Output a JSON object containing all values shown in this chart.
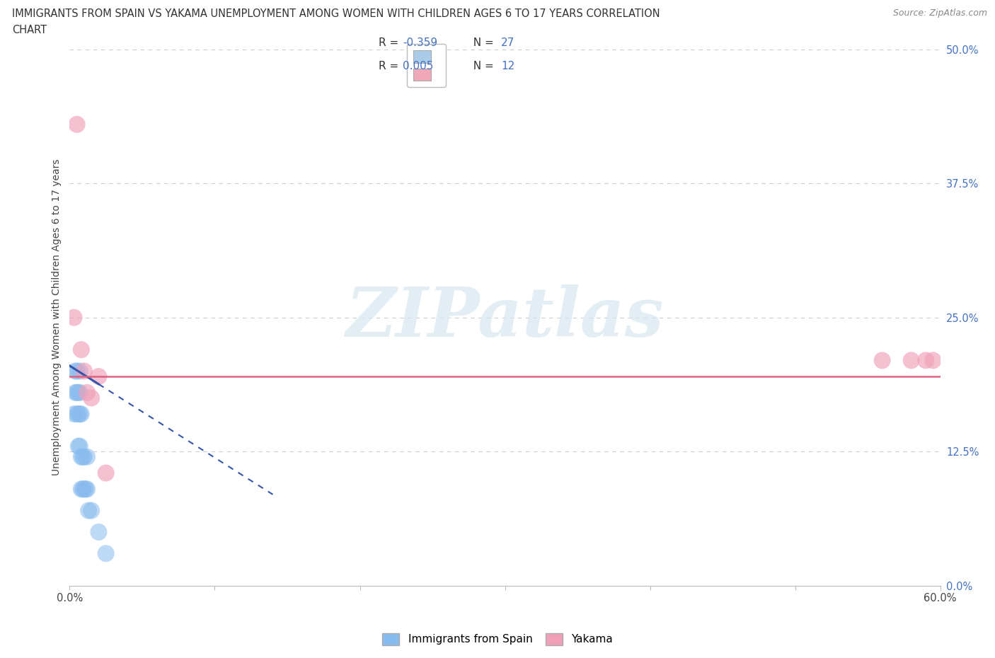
{
  "title_line1": "IMMIGRANTS FROM SPAIN VS YAKAMA UNEMPLOYMENT AMONG WOMEN WITH CHILDREN AGES 6 TO 17 YEARS CORRELATION",
  "title_line2": "CHART",
  "source": "Source: ZipAtlas.com",
  "ylabel": "Unemployment Among Women with Children Ages 6 to 17 years",
  "xlim": [
    0.0,
    0.6
  ],
  "ylim": [
    0.0,
    0.5
  ],
  "xticks": [
    0.0,
    0.1,
    0.2,
    0.3,
    0.4,
    0.5,
    0.6
  ],
  "yticks": [
    0.0,
    0.125,
    0.25,
    0.375,
    0.5
  ],
  "yticklabels": [
    "0.0%",
    "12.5%",
    "25.0%",
    "37.5%",
    "50.0%"
  ],
  "grid_color": "#cccccc",
  "background_color": "#ffffff",
  "blue_dot_color": "#88bbee",
  "pink_dot_color": "#f0a0b8",
  "blue_line_color": "#3355aa",
  "pink_line_color": "#e06080",
  "blue_label": "Immigrants from Spain",
  "pink_label": "Yakama",
  "blue_R": -0.359,
  "blue_N": 27,
  "pink_R": 0.005,
  "pink_N": 12,
  "watermark_text": "ZIPatlas",
  "blue_scatter_x": [
    0.003,
    0.004,
    0.004,
    0.005,
    0.005,
    0.005,
    0.006,
    0.006,
    0.006,
    0.007,
    0.007,
    0.007,
    0.007,
    0.008,
    0.008,
    0.008,
    0.009,
    0.009,
    0.01,
    0.01,
    0.011,
    0.012,
    0.012,
    0.013,
    0.015,
    0.02,
    0.025
  ],
  "blue_scatter_y": [
    0.16,
    0.2,
    0.18,
    0.16,
    0.18,
    0.2,
    0.13,
    0.16,
    0.18,
    0.13,
    0.16,
    0.18,
    0.2,
    0.09,
    0.12,
    0.16,
    0.09,
    0.12,
    0.09,
    0.12,
    0.09,
    0.09,
    0.12,
    0.07,
    0.07,
    0.05,
    0.03
  ],
  "pink_scatter_x": [
    0.003,
    0.005,
    0.008,
    0.01,
    0.012,
    0.015,
    0.02,
    0.025,
    0.56,
    0.58,
    0.59,
    0.595
  ],
  "pink_scatter_y": [
    0.25,
    0.43,
    0.22,
    0.2,
    0.18,
    0.175,
    0.195,
    0.105,
    0.21,
    0.21,
    0.21,
    0.21
  ],
  "blue_trend_start_x": 0.0,
  "blue_trend_start_y": 0.205,
  "blue_trend_end_x": 0.14,
  "blue_trend_end_y": 0.085,
  "blue_trend_solid_end_x": 0.02,
  "pink_trend_y": 0.195,
  "legend_R_color": "#4472c4",
  "legend_N_color": "#4472c4"
}
